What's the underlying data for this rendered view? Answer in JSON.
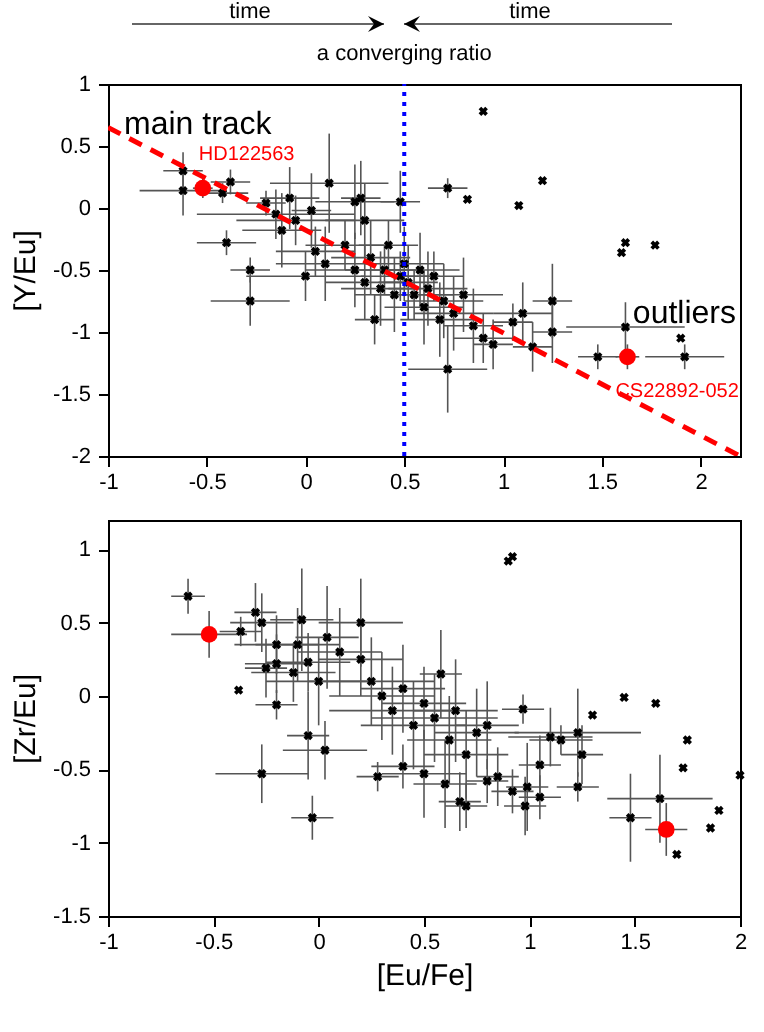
{
  "chart_data": [
    {
      "type": "scatter",
      "ylabel": "[Y/Eu]",
      "xlim": [
        -1,
        2.2
      ],
      "xticks": [
        -1,
        -0.5,
        0,
        0.5,
        1,
        1.5,
        2
      ],
      "ylim": [
        -2,
        1
      ],
      "yticks": [
        -2,
        -1.5,
        -1,
        -0.5,
        0,
        0.5,
        1
      ],
      "grid": false,
      "series": [
        {
          "color": "#000000",
          "marker": "cross",
          "x": [
            -0.62,
            -0.62,
            -0.38,
            -0.42,
            -0.2,
            -0.15,
            -0.08,
            -0.12,
            -0.05,
            0.03,
            0.12,
            0.25,
            0.28,
            0.3,
            0.48,
            0.72,
            -0.4,
            -0.28,
            -0.28,
            0.0,
            0.05,
            0.1,
            0.2,
            0.25,
            0.3,
            0.33,
            0.35,
            0.38,
            0.4,
            0.42,
            0.45,
            0.48,
            0.5,
            0.52,
            0.55,
            0.58,
            0.6,
            0.62,
            0.65,
            0.68,
            0.7,
            0.72,
            0.75,
            0.8,
            0.85,
            0.9,
            0.95,
            1.05,
            1.1,
            1.15,
            1.25,
            1.25,
            1.48,
            1.62,
            1.92,
            0.9,
            1.2,
            1.08,
            0.82,
            1.6,
            1.77,
            1.9,
            1.62
          ],
          "values": [
            0.3,
            0.14,
            0.21,
            0.12,
            0.04,
            -0.05,
            0.08,
            -0.18,
            -0.1,
            -0.02,
            0.2,
            0.05,
            0.08,
            -0.1,
            0.05,
            0.16,
            -0.28,
            -0.75,
            -0.5,
            -0.55,
            -0.35,
            -0.45,
            -0.3,
            -0.5,
            -0.6,
            -0.4,
            -0.9,
            -0.65,
            -0.5,
            -0.3,
            -0.7,
            -0.55,
            -0.45,
            -0.6,
            -0.7,
            -0.5,
            -0.8,
            -0.65,
            -0.55,
            -0.9,
            -0.75,
            -1.3,
            -0.85,
            -0.7,
            -0.95,
            -1.05,
            -1.1,
            -0.92,
            -0.85,
            -1.12,
            -0.75,
            -1.0,
            -1.2,
            -0.96,
            -1.2,
            0.78,
            0.22,
            0.02,
            0.07,
            -0.36,
            -0.3,
            -1.05,
            -0.28
          ],
          "xerrors": [
            0.1,
            0.22,
            0.1,
            0.13,
            0.1,
            0.4,
            0.15,
            0.2,
            0.3,
            0.1,
            0.3,
            0.2,
            0.1,
            0.2,
            0.1,
            0.1,
            0.15,
            0.2,
            0.1,
            0.3,
            0.2,
            0.25,
            0.2,
            0.25,
            0.2,
            0.2,
            0.1,
            0.2,
            0.2,
            0.15,
            0.2,
            0.2,
            0.2,
            0.15,
            0.2,
            0.2,
            0.2,
            0.2,
            0.15,
            0.2,
            0.2,
            0.2,
            0.2,
            0.2,
            0.15,
            0.15,
            0.1,
            0.1,
            0.15,
            0.1,
            0.1,
            0.1,
            0.1,
            0.3,
            0.2,
            null,
            null,
            null,
            null,
            null,
            null,
            null,
            null
          ],
          "errors": [
            0.15,
            0.2,
            0.1,
            0.08,
            0.1,
            0.2,
            0.25,
            0.3,
            0.2,
            0.3,
            0.4,
            0.3,
            0.3,
            0.3,
            0.25,
            0.08,
            0.1,
            0.2,
            0.1,
            0.2,
            0.2,
            0.3,
            0.2,
            0.3,
            0.3,
            0.3,
            0.2,
            0.3,
            0.2,
            0.2,
            0.3,
            0.2,
            0.3,
            0.3,
            0.2,
            0.3,
            0.3,
            0.3,
            0.2,
            0.3,
            0.3,
            0.35,
            0.3,
            0.3,
            0.3,
            0.2,
            0.2,
            0.15,
            0.25,
            0.2,
            0.3,
            0.25,
            0.1,
            0.2,
            0.1,
            null,
            null,
            null,
            null,
            null,
            null,
            null,
            null
          ]
        },
        {
          "color": "#ff0000",
          "marker": "circle",
          "x": [
            -0.52,
            1.63
          ],
          "values": [
            0.16,
            -1.2
          ],
          "xerrors": [
            0.05,
            0.06
          ],
          "errors": [
            0.08,
            0.1
          ]
        },
        {
          "type": "line",
          "color": "#ff0000",
          "line_style": "dashed",
          "x": [
            -1,
            2.2
          ],
          "values": [
            0.65,
            -2.0
          ]
        }
      ],
      "ref_lines": [
        {
          "axis": "x",
          "value": 0.5,
          "label": "a converging ratio",
          "color": "#0000ff",
          "line_style": "dotted"
        }
      ],
      "annotations": [
        "time",
        "time",
        "main track",
        {
          "text": "HD122563",
          "x": -0.52,
          "y": 0.16
        },
        "outliers",
        {
          "text": "CS22892-052",
          "x": 1.63,
          "y": -1.2
        }
      ]
    },
    {
      "type": "scatter",
      "xlabel": "[Eu/Fe]",
      "ylabel": "[Zr/Eu]",
      "xlim": [
        -1,
        2
      ],
      "xticks": [
        -1,
        -0.5,
        0,
        0.5,
        1,
        1.5,
        2
      ],
      "ylim": [
        -1.5,
        1.2
      ],
      "yticks": [
        -1.5,
        -1,
        -0.5,
        0,
        0.5,
        1
      ],
      "grid": false,
      "series": [
        {
          "color": "#000000",
          "marker": "cross",
          "x": [
            -0.62,
            -0.3,
            -0.27,
            -0.37,
            -0.08,
            0.04,
            -0.2,
            -0.1,
            -0.2,
            -0.25,
            -0.12,
            -0.05,
            0.0,
            -0.2,
            0.2,
            0.1,
            0.2,
            0.25,
            0.3,
            0.35,
            0.4,
            0.45,
            0.5,
            0.55,
            0.58,
            0.62,
            0.65,
            0.7,
            0.75,
            0.8,
            0.97,
            1.15,
            1.23,
            1.1,
            -0.05,
            0.03,
            0.28,
            0.4,
            0.5,
            0.6,
            0.67,
            0.7,
            0.8,
            0.85,
            0.92,
            0.98,
            0.99,
            1.05,
            1.05,
            1.23,
            1.25,
            -0.27,
            -0.03,
            1.48,
            1.62,
            0.9,
            0.92,
            -0.38,
            1.45,
            1.6,
            1.3,
            1.75,
            1.9,
            1.86,
            1.7,
            2.0,
            1.73
          ],
          "values": [
            0.68,
            0.57,
            0.5,
            0.44,
            0.52,
            0.4,
            0.35,
            0.35,
            0.22,
            0.19,
            0.16,
            0.23,
            0.1,
            -0.06,
            0.5,
            0.3,
            0.25,
            0.1,
            0.0,
            -0.1,
            0.05,
            -0.2,
            -0.05,
            -0.15,
            0.15,
            -0.3,
            -0.1,
            -0.4,
            -0.25,
            -0.2,
            -0.09,
            -0.3,
            -0.25,
            -0.28,
            -0.27,
            -0.37,
            -0.55,
            -0.48,
            -0.53,
            -0.6,
            -0.72,
            -0.75,
            -0.58,
            -0.55,
            -0.65,
            -0.75,
            -0.62,
            -0.69,
            -0.47,
            -0.62,
            -0.4,
            -0.53,
            -0.83,
            -0.83,
            -0.7,
            0.92,
            0.95,
            0.04,
            -0.01,
            -0.05,
            -0.13,
            -0.3,
            -0.78,
            -0.9,
            -1.08,
            -0.54,
            -0.49
          ],
          "xerrors": [
            0.08,
            0.1,
            0.15,
            0.1,
            0.15,
            0.15,
            0.2,
            0.2,
            0.15,
            0.1,
            0.2,
            0.2,
            0.25,
            0.1,
            0.2,
            0.2,
            0.2,
            0.3,
            0.25,
            0.3,
            0.2,
            0.25,
            0.2,
            0.3,
            0.1,
            0.2,
            0.2,
            0.2,
            0.2,
            0.15,
            0.1,
            0.15,
            0.3,
            0.2,
            0.1,
            0.2,
            0.1,
            0.15,
            0.2,
            0.15,
            0.1,
            0.1,
            0.1,
            0.1,
            0.1,
            0.1,
            0.1,
            0.1,
            0.1,
            0.1,
            0.1,
            0.22,
            0.1,
            0.1,
            0.25,
            null,
            null,
            null,
            null,
            null,
            null,
            null,
            null,
            null,
            null,
            null,
            null
          ],
          "errors": [
            0.12,
            0.2,
            0.2,
            0.1,
            0.35,
            0.35,
            0.2,
            0.25,
            0.2,
            0.2,
            0.2,
            0.2,
            0.3,
            0.1,
            0.3,
            0.3,
            0.25,
            0.3,
            0.3,
            0.3,
            0.3,
            0.3,
            0.25,
            0.3,
            0.3,
            0.3,
            0.35,
            0.3,
            0.3,
            0.3,
            0.1,
            0.1,
            0.3,
            0.2,
            0.3,
            0.2,
            0.1,
            0.15,
            0.3,
            0.3,
            0.2,
            0.15,
            0.15,
            0.2,
            0.15,
            0.2,
            0.3,
            0.15,
            0.2,
            0.1,
            0.2,
            0.2,
            0.15,
            0.3,
            0.3,
            null,
            null,
            null,
            null,
            null,
            null,
            null,
            null,
            null,
            null,
            null,
            null
          ]
        },
        {
          "color": "#ff0000",
          "marker": "circle",
          "x": [
            -0.52,
            1.65
          ],
          "values": [
            0.42,
            -0.91
          ],
          "xerrors": [
            0.18,
            0.1
          ],
          "errors": [
            0.16,
            0.18
          ]
        }
      ]
    }
  ]
}
